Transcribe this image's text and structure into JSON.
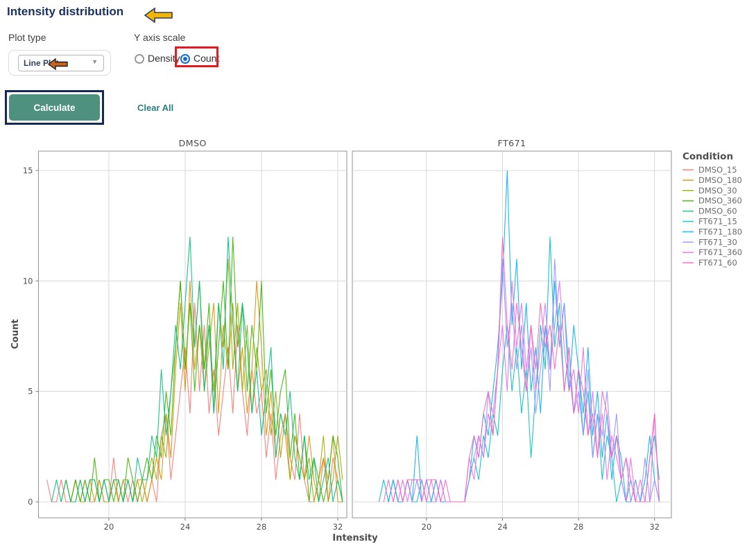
{
  "header": {
    "title": "Intensity distribution"
  },
  "controls": {
    "plot_type": {
      "label": "Plot type",
      "value": "Line Plot"
    },
    "y_axis_scale": {
      "label": "Y axis scale",
      "options": [
        {
          "label": "Density",
          "selected": false
        },
        {
          "label": "Count",
          "selected": true
        }
      ]
    },
    "calculate_label": "Calculate",
    "clear_all_label": "Clear All"
  },
  "annotations": {
    "title_arrow_color": "#f2b600",
    "dropdown_arrow_color": "#c8641d",
    "red_box_color": "#e8191c",
    "navy_box_color": "#152a52"
  },
  "chart_data": {
    "type": "line",
    "title": "",
    "xlabel": "Intensity",
    "ylabel": "Count",
    "legend_title": "Condition",
    "facets": [
      "DMSO",
      "FT671"
    ],
    "x_ticks": [
      20,
      24,
      28,
      32
    ],
    "y_ticks": [
      0,
      5,
      10,
      15
    ],
    "xlim": [
      16.3,
      32.5
    ],
    "ylim": [
      -0.72,
      15.88
    ],
    "grid": true,
    "legend_position": "right",
    "x": [
      16.5,
      16.75,
      17,
      17.25,
      17.5,
      17.75,
      18,
      18.25,
      18.5,
      18.75,
      19,
      19.25,
      19.5,
      19.75,
      20,
      20.25,
      20.5,
      20.75,
      21,
      21.25,
      21.5,
      21.75,
      22,
      22.25,
      22.5,
      22.75,
      23,
      23.25,
      23.5,
      23.75,
      24,
      24.25,
      24.5,
      24.75,
      25,
      25.25,
      25.5,
      25.75,
      26,
      26.25,
      26.5,
      26.75,
      27,
      27.25,
      27.5,
      27.75,
      28,
      28.25,
      28.5,
      28.75,
      29,
      29.25,
      29.5,
      29.75,
      30,
      30.25,
      30.5,
      30.75,
      31,
      31.25,
      31.5,
      31.75,
      32,
      32.25
    ],
    "series": [
      {
        "name": "DMSO_15",
        "facet": "DMSO",
        "color": "#F8766D",
        "values": [
          null,
          1,
          0,
          0,
          1,
          0,
          0,
          1,
          0,
          1,
          0,
          0,
          1,
          0,
          0,
          2,
          0,
          1,
          0,
          1,
          0,
          1,
          0,
          1,
          0,
          3,
          4,
          1,
          3,
          5,
          7,
          4,
          9,
          5,
          8,
          4,
          6,
          3,
          5,
          7,
          4,
          8,
          5,
          3,
          6,
          4,
          5,
          2,
          4,
          1,
          3,
          4,
          2,
          1,
          4,
          1,
          0,
          0,
          1,
          2,
          0,
          2,
          1,
          0
        ]
      },
      {
        "name": "DMSO_180",
        "facet": "DMSO",
        "color": "#D89000",
        "values": [
          null,
          null,
          null,
          null,
          0,
          1,
          0,
          0,
          1,
          0,
          1,
          0,
          1,
          0,
          0,
          1,
          1,
          0,
          1,
          0,
          1,
          1,
          0,
          1,
          2,
          1,
          4,
          2,
          6,
          9,
          5,
          10,
          6,
          8,
          5,
          7,
          9,
          4,
          8,
          6,
          9,
          5,
          7,
          4,
          6,
          10,
          7,
          3,
          5,
          2,
          4,
          3,
          1,
          3,
          2,
          1,
          3,
          1,
          0,
          2,
          1,
          3,
          0,
          0
        ]
      },
      {
        "name": "DMSO_30",
        "facet": "DMSO",
        "color": "#A3A500",
        "values": [
          null,
          null,
          null,
          null,
          null,
          1,
          0,
          1,
          0,
          0,
          1,
          1,
          0,
          1,
          0,
          1,
          0,
          1,
          1,
          0,
          1,
          0,
          1,
          2,
          1,
          3,
          2,
          5,
          7,
          10,
          6,
          9,
          7,
          10,
          6,
          8,
          5,
          9,
          7,
          11,
          6,
          9,
          5,
          8,
          4,
          7,
          5,
          6,
          3,
          5,
          2,
          4,
          1,
          3,
          2,
          1,
          2,
          0,
          1,
          3,
          0,
          1,
          3,
          1
        ]
      },
      {
        "name": "DMSO_360",
        "facet": "DMSO",
        "color": "#39B600",
        "values": [
          null,
          null,
          null,
          null,
          null,
          null,
          0,
          1,
          0,
          1,
          0,
          2,
          0,
          1,
          1,
          0,
          1,
          0,
          2,
          1,
          0,
          1,
          2,
          1,
          3,
          2,
          5,
          3,
          7,
          10,
          6,
          9,
          5,
          8,
          6,
          9,
          4,
          7,
          10,
          6,
          12,
          7,
          9,
          5,
          8,
          6,
          10,
          4,
          6,
          3,
          5,
          6,
          2,
          4,
          1,
          3,
          0,
          2,
          1,
          0,
          1,
          3,
          2,
          0
        ]
      },
      {
        "name": "DMSO_60",
        "facet": "DMSO",
        "color": "#00BF7D",
        "values": [
          null,
          null,
          0,
          1,
          0,
          1,
          0,
          0,
          1,
          0,
          1,
          1,
          0,
          1,
          0,
          1,
          1,
          0,
          1,
          0,
          2,
          1,
          1,
          3,
          2,
          6,
          3,
          5,
          8,
          6,
          9,
          12,
          7,
          10,
          5,
          8,
          4,
          9,
          6,
          12,
          8,
          5,
          9,
          7,
          4,
          6,
          3,
          5,
          7,
          2,
          4,
          3,
          5,
          2,
          1,
          3,
          1,
          2,
          0,
          1,
          2,
          0,
          1,
          0
        ]
      },
      {
        "name": "FT671_15",
        "facet": "FT671",
        "color": "#00BFC4",
        "values": [
          null,
          null,
          null,
          null,
          null,
          null,
          0,
          1,
          0,
          0,
          1,
          0,
          0,
          1,
          0,
          0,
          1,
          0,
          0,
          0,
          0,
          0,
          0,
          1,
          2,
          1,
          3,
          2,
          4,
          3,
          6,
          8,
          5,
          7,
          4,
          6,
          2,
          5,
          8,
          6,
          12,
          7,
          9,
          5,
          7,
          4,
          6,
          3,
          5,
          2,
          4,
          1,
          3,
          2,
          0,
          1,
          0,
          0,
          1,
          0,
          0,
          2,
          3,
          1
        ]
      },
      {
        "name": "FT671_180",
        "facet": "FT671",
        "color": "#00B0F6",
        "values": [
          null,
          null,
          null,
          null,
          0,
          1,
          0,
          1,
          0,
          0,
          1,
          0,
          3,
          0,
          1,
          0,
          1,
          0,
          0,
          0,
          0,
          0,
          0,
          1,
          3,
          2,
          4,
          3,
          5,
          7,
          10,
          15,
          8,
          11,
          6,
          9,
          5,
          7,
          4,
          8,
          6,
          10,
          7,
          9,
          5,
          8,
          6,
          4,
          7,
          3,
          5,
          2,
          4,
          1,
          3,
          2,
          0,
          1,
          0,
          0,
          1,
          3,
          1,
          0
        ]
      },
      {
        "name": "FT671_30",
        "facet": "FT671",
        "color": "#9590FF",
        "values": [
          null,
          null,
          null,
          null,
          null,
          null,
          null,
          0,
          1,
          0,
          1,
          0,
          1,
          0,
          1,
          0,
          0,
          1,
          0,
          0,
          0,
          0,
          0,
          1,
          2,
          3,
          2,
          5,
          4,
          6,
          11,
          7,
          9,
          6,
          8,
          5,
          7,
          4,
          6,
          8,
          5,
          11,
          7,
          9,
          6,
          4,
          5,
          3,
          6,
          2,
          4,
          3,
          5,
          2,
          4,
          1,
          2,
          0,
          1,
          0,
          2,
          0,
          1,
          0
        ]
      },
      {
        "name": "FT671_360",
        "facet": "FT671",
        "color": "#E76BF3",
        "values": [
          null,
          null,
          null,
          null,
          null,
          null,
          null,
          null,
          0,
          1,
          0,
          1,
          1,
          0,
          1,
          1,
          0,
          1,
          0,
          0,
          0,
          0,
          0,
          2,
          1,
          3,
          2,
          4,
          3,
          6,
          8,
          5,
          10,
          7,
          9,
          6,
          8,
          5,
          7,
          9,
          6,
          8,
          10,
          7,
          5,
          6,
          4,
          7,
          3,
          5,
          2,
          4,
          1,
          3,
          2,
          1,
          0,
          2,
          0,
          1,
          0,
          0,
          4,
          0
        ]
      },
      {
        "name": "FT671_60",
        "facet": "FT671",
        "color": "#FF62BC",
        "values": [
          null,
          null,
          null,
          null,
          null,
          0,
          1,
          0,
          1,
          0,
          1,
          1,
          1,
          1,
          0,
          1,
          1,
          0,
          1,
          0,
          0,
          0,
          0,
          2,
          3,
          2,
          4,
          5,
          3,
          6,
          12,
          8,
          6,
          9,
          7,
          5,
          8,
          6,
          9,
          7,
          8,
          6,
          8,
          5,
          7,
          4,
          6,
          5,
          3,
          4,
          2,
          5,
          4,
          2,
          3,
          1,
          2,
          1,
          0,
          0,
          0,
          2,
          4,
          0
        ]
      }
    ]
  }
}
